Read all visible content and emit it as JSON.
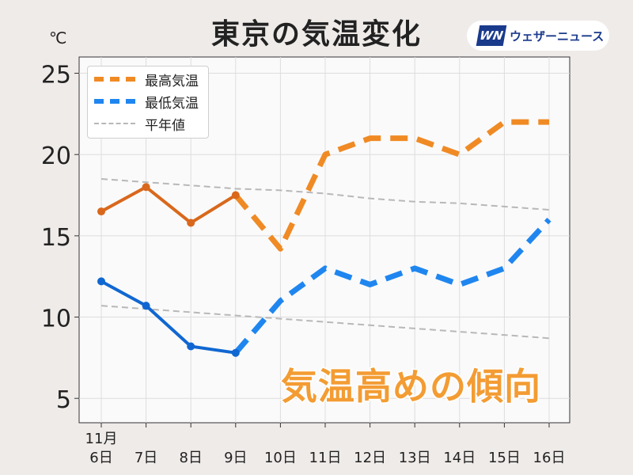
{
  "title": "東京の気温変化",
  "unit": "℃",
  "brand": {
    "logo": "WN",
    "name": "ウェザーニュース"
  },
  "overlay_text": "気温高めの傾向",
  "legend": [
    {
      "key": "high",
      "label": "最高気温"
    },
    {
      "key": "low",
      "label": "最低気温"
    },
    {
      "key": "normal",
      "label": "平年値"
    }
  ],
  "colors": {
    "high_actual": "#d9681c",
    "high_forecast": "#f08a24",
    "low_actual": "#1167d1",
    "low_forecast": "#1f86f0",
    "normal": "#b8b8b8",
    "overlay": "#f39c33",
    "brand": "#1a3a8c"
  },
  "chart_data": {
    "type": "line",
    "month_label": "11月",
    "categories": [
      "6日",
      "7日",
      "8日",
      "9日",
      "10日",
      "11日",
      "12日",
      "13日",
      "14日",
      "15日",
      "16日"
    ],
    "ylim": [
      3.5,
      26
    ],
    "yticks": [
      5,
      10,
      15,
      20,
      25
    ],
    "grid": true,
    "legend_position": "top-left",
    "series": [
      {
        "name": "最高気温",
        "values": [
          16.5,
          18,
          15.8,
          17.5,
          14.2,
          20,
          21,
          21,
          20,
          22,
          22
        ],
        "actual_until_index": 3,
        "style": "solid-then-dashed",
        "markers_on_actual": true
      },
      {
        "name": "最低気温",
        "values": [
          12.2,
          10.7,
          8.2,
          7.8,
          11,
          13,
          12,
          13,
          12,
          13,
          16
        ],
        "actual_until_index": 3,
        "style": "solid-then-dashed",
        "markers_on_actual": true
      },
      {
        "name": "平年値",
        "subseries": [
          {
            "values": [
              18.5,
              18.3,
              18.1,
              17.9,
              17.8,
              17.6,
              17.3,
              17.1,
              17.0,
              16.8,
              16.6
            ]
          },
          {
            "values": [
              10.7,
              10.5,
              10.3,
              10.1,
              9.9,
              9.7,
              9.5,
              9.3,
              9.1,
              8.9,
              8.7
            ]
          }
        ],
        "style": "dashed"
      }
    ]
  }
}
